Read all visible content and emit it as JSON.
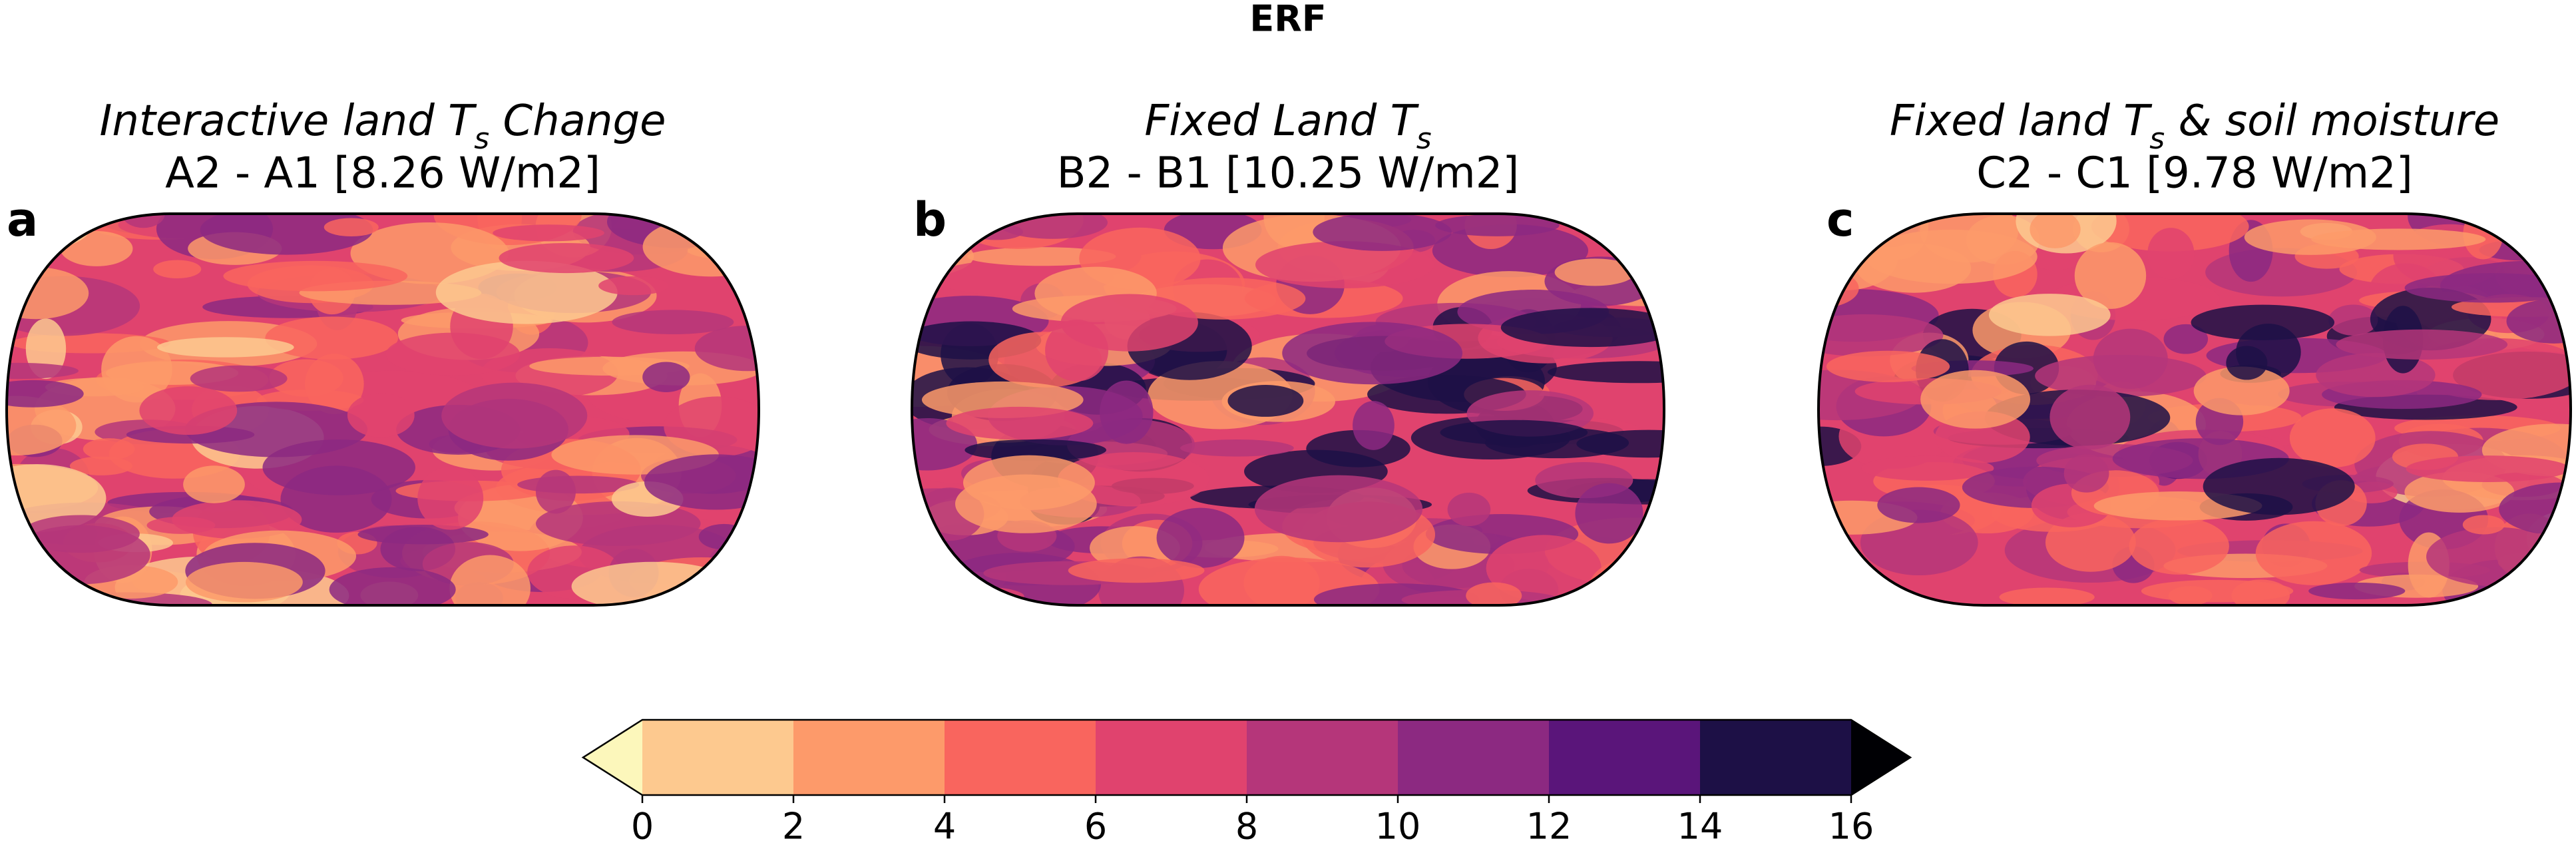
{
  "title": "ERF",
  "panels": [
    {
      "letter": "a",
      "title_parts": [
        {
          "text": "Interactive land T"
        },
        {
          "text": "s",
          "sub": true
        },
        {
          "text": " Change"
        }
      ],
      "subtitle": "A2 - A1 [8.26 W/m2]"
    },
    {
      "letter": "b",
      "title_parts": [
        {
          "text": "Fixed Land T"
        },
        {
          "text": "s",
          "sub": true
        }
      ],
      "subtitle": "B2 - B1 [10.25 W/m2]"
    },
    {
      "letter": "c",
      "title_parts": [
        {
          "text": "Fixed land T"
        },
        {
          "text": "s",
          "sub": true
        },
        {
          "text": " & soil moisture"
        }
      ],
      "subtitle": "C2 - C1 [9.78 W/m2]"
    }
  ],
  "colorbar": {
    "ticks": [
      0,
      2,
      4,
      6,
      8,
      10,
      12,
      14,
      16
    ],
    "colors": [
      "#fdc98f",
      "#fd9a6a",
      "#f9655e",
      "#e0436e",
      "#b5367a",
      "#8c2981",
      "#5a157a",
      "#1d1046"
    ],
    "under_color": "#fcf7bb",
    "over_color": "#000004",
    "extend": "both"
  }
}
